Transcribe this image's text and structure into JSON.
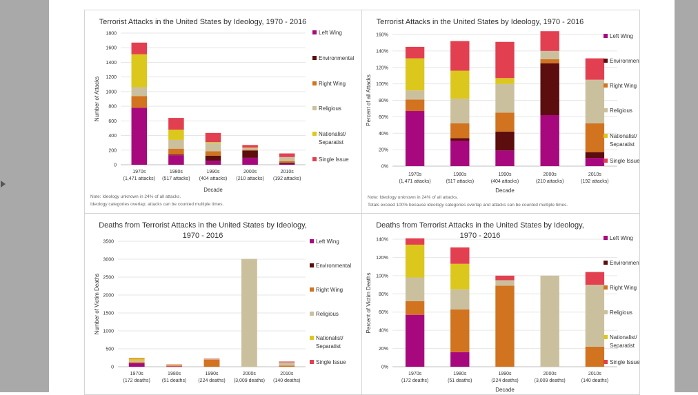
{
  "colors": {
    "left_wing": "#a8087e",
    "environmental": "#5c0d0d",
    "right_wing": "#d2731f",
    "religious": "#cbc09e",
    "nationalist": "#dcc71c",
    "single_issue": "#e24050"
  },
  "chart_data": [
    {
      "type": "bar",
      "stacked": true,
      "title": "Terrorist Attacks in the United States by Ideology, 1970 - 2016",
      "xlabel": "Decade",
      "ylabel": "Number of Attacks",
      "ylim": [
        0,
        1800
      ],
      "yticks": [
        "0",
        "200",
        "400",
        "600",
        "800",
        "1000",
        "1200",
        "1400",
        "1600",
        "1800"
      ],
      "categories": [
        "1970s",
        "1980s",
        "1990s",
        "2000s",
        "2010s"
      ],
      "category_sublabels": [
        "(1,471 attacks)",
        "(517 attacks)",
        "(404 attacks)",
        "(210 attacks)",
        "(192 attacks)"
      ],
      "legend": [
        "Left Wing",
        "Environmental",
        "Right Wing",
        "Religious",
        "Nationalist/ Separatist",
        "Single Issue"
      ],
      "legend_position": "right",
      "series": [
        {
          "name": "Left Wing",
          "values": [
            780,
            130,
            55,
            95,
            15
          ]
        },
        {
          "name": "Environmental",
          "values": [
            0,
            10,
            70,
            100,
            15
          ]
        },
        {
          "name": "Right Wing",
          "values": [
            160,
            80,
            60,
            10,
            20
          ]
        },
        {
          "name": "Religious",
          "values": [
            120,
            120,
            115,
            25,
            55
          ]
        },
        {
          "name": "Nationalist/ Separatist",
          "values": [
            450,
            140,
            10,
            5,
            0
          ]
        },
        {
          "name": "Single Issue",
          "values": [
            160,
            160,
            125,
            35,
            50
          ]
        }
      ],
      "notes": [
        "Note: Ideology unknown in 24% of all attacks.",
        "Ideology categories overlap; attacks can be counted multiple times."
      ]
    },
    {
      "type": "bar",
      "stacked": true,
      "title": "Terrorist Attacks in the United States by Ideology, 1970 - 2016",
      "xlabel": "Decade",
      "ylabel": "Percent of all Attacks",
      "ylim": [
        0,
        160
      ],
      "yticks": [
        "0%",
        "20%",
        "40%",
        "60%",
        "80%",
        "100%",
        "120%",
        "140%",
        "160%"
      ],
      "categories": [
        "1970s",
        "1980s",
        "1990s",
        "2000s",
        "2010s"
      ],
      "category_sublabels": [
        "(1,471 attacks)",
        "(517 attacks)",
        "(404 attacks)",
        "(210 attacks)",
        "(192 attacks)"
      ],
      "legend": [
        "Left Wing",
        "Environmental",
        "Right Wing",
        "Religious",
        "Nationalist/ Separatist",
        "Single Issue"
      ],
      "legend_position": "right",
      "series": [
        {
          "name": "Left Wing",
          "values": [
            67,
            31,
            19,
            62,
            10
          ]
        },
        {
          "name": "Environmental",
          "values": [
            0,
            3,
            23,
            63,
            7
          ]
        },
        {
          "name": "Right Wing",
          "values": [
            14,
            18,
            23,
            5,
            35
          ]
        },
        {
          "name": "Religious",
          "values": [
            11,
            30,
            35,
            10,
            53
          ]
        },
        {
          "name": "Nationalist/ Separatist",
          "values": [
            39,
            34,
            7,
            0,
            0
          ]
        },
        {
          "name": "Single Issue",
          "values": [
            14,
            36,
            44,
            24,
            26
          ]
        }
      ],
      "notes": [
        "Note: Ideology unknown in 24% of all attacks.",
        "Totals exceed 100% because ideology categories overlap and attacks can be counted multiple times."
      ]
    },
    {
      "type": "bar",
      "stacked": true,
      "title": "Deaths from Terrorist Attacks in the United States by Ideology, 1970 - 2016",
      "xlabel": "",
      "ylabel": "Number of Victim Deaths",
      "ylim": [
        0,
        3500
      ],
      "yticks": [
        "0",
        "500",
        "1000",
        "1500",
        "2000",
        "2500",
        "3000",
        "3500"
      ],
      "categories": [
        "1970s",
        "1980s",
        "1990s",
        "2000s",
        "2010s"
      ],
      "category_sublabels": [
        "(172 deaths)",
        "(51 deaths)",
        "(224 deaths)",
        "(3,009 deaths)",
        "(140 deaths)"
      ],
      "legend": [
        "Left Wing",
        "Environmental",
        "Right Wing",
        "Religious",
        "Nationalist/ Separatist",
        "Single Issue"
      ],
      "legend_position": "right",
      "series": [
        {
          "name": "Left Wing",
          "values": [
            100,
            8,
            0,
            0,
            0
          ]
        },
        {
          "name": "Environmental",
          "values": [
            0,
            0,
            0,
            0,
            0
          ]
        },
        {
          "name": "Right Wing",
          "values": [
            25,
            25,
            200,
            0,
            30
          ]
        },
        {
          "name": "Religious",
          "values": [
            45,
            12,
            15,
            3009,
            95
          ]
        },
        {
          "name": "Nationalist/ Separatist",
          "values": [
            60,
            12,
            0,
            0,
            0
          ]
        },
        {
          "name": "Single Issue",
          "values": [
            15,
            8,
            10,
            0,
            20
          ]
        }
      ],
      "notes": []
    },
    {
      "type": "bar",
      "stacked": true,
      "title": "Deaths from Terrorist Attacks in the United States by Ideology, 1970 - 2016",
      "xlabel": "Decade",
      "ylabel": "Percent of Victim Deaths",
      "ylim": [
        0,
        140
      ],
      "yticks": [
        "0%",
        "20%",
        "40%",
        "60%",
        "80%",
        "100%",
        "120%",
        "140%"
      ],
      "categories": [
        "1970s",
        "1980s",
        "1990s",
        "2000s",
        "2010s"
      ],
      "category_sublabels": [
        "(172 deaths)",
        "(51 deaths)",
        "(224 deaths)",
        "(3,009 deaths)",
        "(140 deaths)"
      ],
      "legend": [
        "Left Wing",
        "Environmental",
        "Right Wing",
        "Religious",
        "Nationalist/ Separatist",
        "Single Issue"
      ],
      "legend_position": "right",
      "series": [
        {
          "name": "Left Wing",
          "values": [
            57,
            16,
            0,
            0,
            0
          ]
        },
        {
          "name": "Environmental",
          "values": [
            0,
            0,
            0,
            0,
            0
          ]
        },
        {
          "name": "Right Wing",
          "values": [
            15,
            47,
            89,
            0,
            22
          ]
        },
        {
          "name": "Religious",
          "values": [
            26,
            22,
            6,
            100,
            68
          ]
        },
        {
          "name": "Nationalist/ Separatist",
          "values": [
            36,
            28,
            0,
            0,
            0
          ]
        },
        {
          "name": "Single Issue",
          "values": [
            7,
            18,
            5,
            0,
            14
          ]
        }
      ],
      "notes": []
    }
  ]
}
